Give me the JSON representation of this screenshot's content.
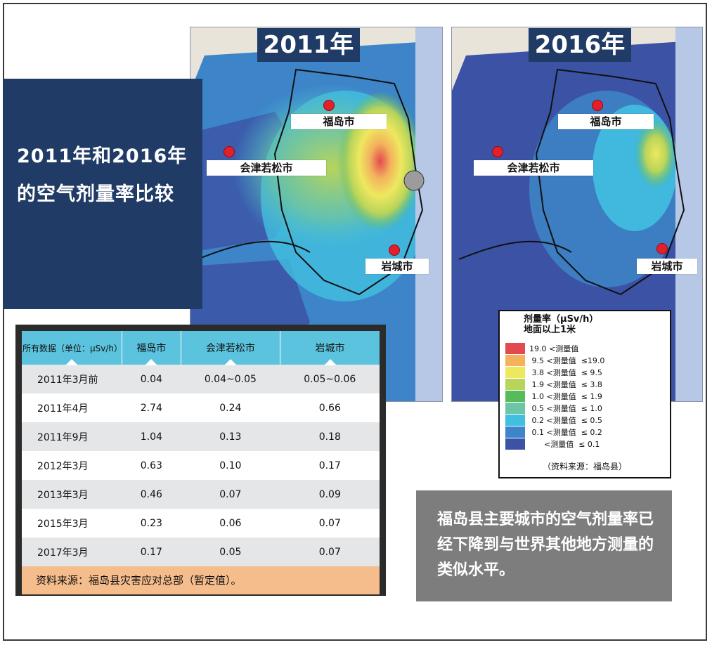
{
  "title": "2011年和2016年的空气剂量率比较",
  "maps": [
    {
      "year": "2011年",
      "cities": {
        "fukushima": "福岛市",
        "aizu": "会津若松市",
        "iwaki": "岩城市"
      }
    },
    {
      "year": "2016年",
      "cities": {
        "fukushima": "福岛市",
        "aizu": "会津若松市",
        "iwaki": "岩城市"
      }
    }
  ],
  "legend": {
    "title_line1": "剂量率（μSv/h）",
    "title_line2": "地面以上1米",
    "items": [
      {
        "color": "#e34a4f",
        "label": "19.0 <测量值"
      },
      {
        "color": "#f4b25d",
        "label": " 9.5 <测量值  ≤19.0"
      },
      {
        "color": "#eee85e",
        "label": " 3.8 <测量值  ≤ 9.5"
      },
      {
        "color": "#b9d45a",
        "label": " 1.9 <测量值  ≤ 3.8"
      },
      {
        "color": "#58bb5b",
        "label": " 1.0 <测量值  ≤ 1.9"
      },
      {
        "color": "#6dc6a3",
        "label": " 0.5 <测量值  ≤ 1.0"
      },
      {
        "color": "#41bfe0",
        "label": " 0.2 <测量值  ≤ 0.5"
      },
      {
        "color": "#3d85c8",
        "label": " 0.1 <测量值  ≤ 0.2"
      },
      {
        "color": "#3c52a4",
        "label": "      <测量值  ≤ 0.1"
      }
    ],
    "source": "（资料来源：福岛县）"
  },
  "table": {
    "headers": [
      "所有数据（单位：μSv/h）",
      "福岛市",
      "会津若松市",
      "岩城市"
    ],
    "rows": [
      [
        "2011年3月前",
        "0.04",
        "0.04~0.05",
        "0.05~0.06"
      ],
      [
        "2011年4月",
        "2.74",
        "0.24",
        "0.66"
      ],
      [
        "2011年9月",
        "1.04",
        "0.13",
        "0.18"
      ],
      [
        "2012年3月",
        "0.63",
        "0.10",
        "0.17"
      ],
      [
        "2013年3月",
        "0.46",
        "0.07",
        "0.09"
      ],
      [
        "2015年3月",
        "0.23",
        "0.06",
        "0.07"
      ],
      [
        "2017年3月",
        "0.17",
        "0.05",
        "0.07"
      ]
    ],
    "source": "资料来源：福岛县灾害应对总部（暂定值）。"
  },
  "caption": "福岛县主要城市的空气剂量率已经下降到与世界其他地方测量的类似水平。"
}
